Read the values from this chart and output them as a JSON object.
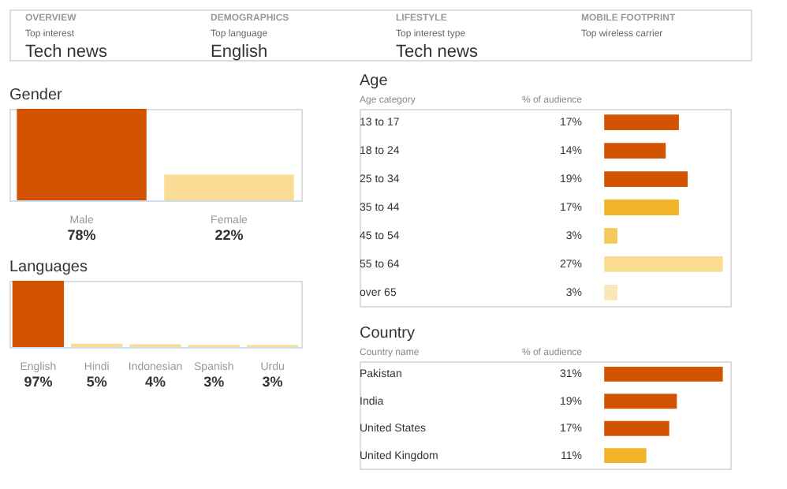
{
  "chart_data": [
    {
      "type": "other",
      "annotations": [
        "OVERVIEW",
        "Top interest",
        "Tech news",
        "DEMOGRAPHICS",
        "Top language",
        "English",
        "LIFESTYLE",
        "Top interest type",
        "Tech news",
        "MOBILE FOOTPRINT",
        "Top wireless carrier"
      ]
    },
    {
      "type": "bar",
      "title": "Gender",
      "categories": [
        "Male",
        "Female"
      ],
      "values": [
        78,
        22
      ],
      "colors": [
        "#d35400",
        "#fbdc94"
      ],
      "value_labels": [
        "78%",
        "22%"
      ]
    },
    {
      "type": "bar",
      "title": "Languages",
      "categories": [
        "English",
        "Hindi",
        "Indonesian",
        "Spanish",
        "Urdu"
      ],
      "values": [
        97,
        5,
        4,
        3,
        3
      ],
      "colors": [
        "#d35400",
        "#fbdc94",
        "#fbdc94",
        "#fbdc94",
        "#fbdc94"
      ],
      "value_labels": [
        "97%",
        "5%",
        "4%",
        "3%",
        "3%"
      ]
    },
    {
      "type": "bar",
      "orientation": "horizontal",
      "title": "Age",
      "ylabel": "Age category",
      "xlabel": "% of audience",
      "categories": [
        "13 to 17",
        "18 to 24",
        "25 to 34",
        "35 to 44",
        "45 to 54",
        "55 to 64",
        "over 65"
      ],
      "values": [
        17,
        14,
        19,
        17,
        3,
        27,
        3
      ],
      "colors": [
        "#d35400",
        "#d35400",
        "#d35400",
        "#f0b429",
        "#f5c85a",
        "#fbdc94",
        "#fbe6b8"
      ],
      "value_labels": [
        "17%",
        "14%",
        "19%",
        "17%",
        "3%",
        "27%",
        "3%"
      ]
    },
    {
      "type": "bar",
      "orientation": "horizontal",
      "title": "Country",
      "ylabel": "Country name",
      "xlabel": "% of audience",
      "categories": [
        "Pakistan",
        "India",
        "United States",
        "United Kingdom"
      ],
      "values": [
        31,
        19,
        17,
        11
      ],
      "colors": [
        "#d35400",
        "#d35400",
        "#d35400",
        "#f0b429"
      ],
      "value_labels": [
        "31%",
        "19%",
        "17%",
        "11%"
      ]
    }
  ]
}
